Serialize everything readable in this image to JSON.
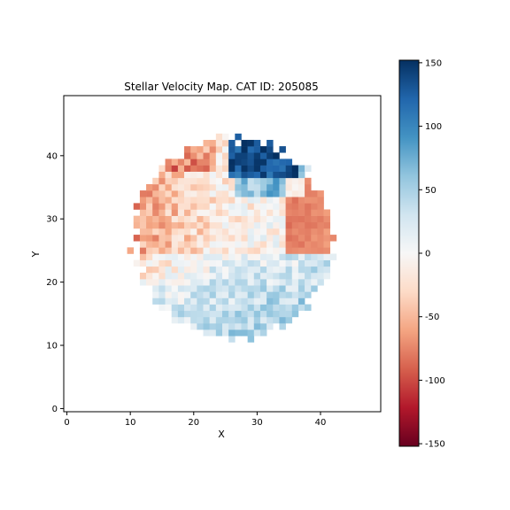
{
  "chart_data": {
    "type": "heatmap",
    "title": "Stellar Velocity Map. CAT ID: 205085",
    "xlabel": "X",
    "ylabel": "Y",
    "xlim": [
      -0.5,
      49.5
    ],
    "ylim": [
      -0.5,
      49.5
    ],
    "x_ticks": [
      0,
      10,
      20,
      30,
      40
    ],
    "y_ticks": [
      0,
      10,
      20,
      30,
      40
    ],
    "grid": false,
    "colormap": "RdBu",
    "vmin": -152,
    "vmax": 152,
    "colorbar_ticks": [
      150,
      100,
      50,
      0,
      -50,
      -100,
      -150
    ],
    "map": {
      "center": [
        26.2,
        27.0
      ],
      "radius": 15.5,
      "description": "velocity field: negative (red) on upper-left, strongly positive (blue) on upper-right and lower region"
    }
  }
}
